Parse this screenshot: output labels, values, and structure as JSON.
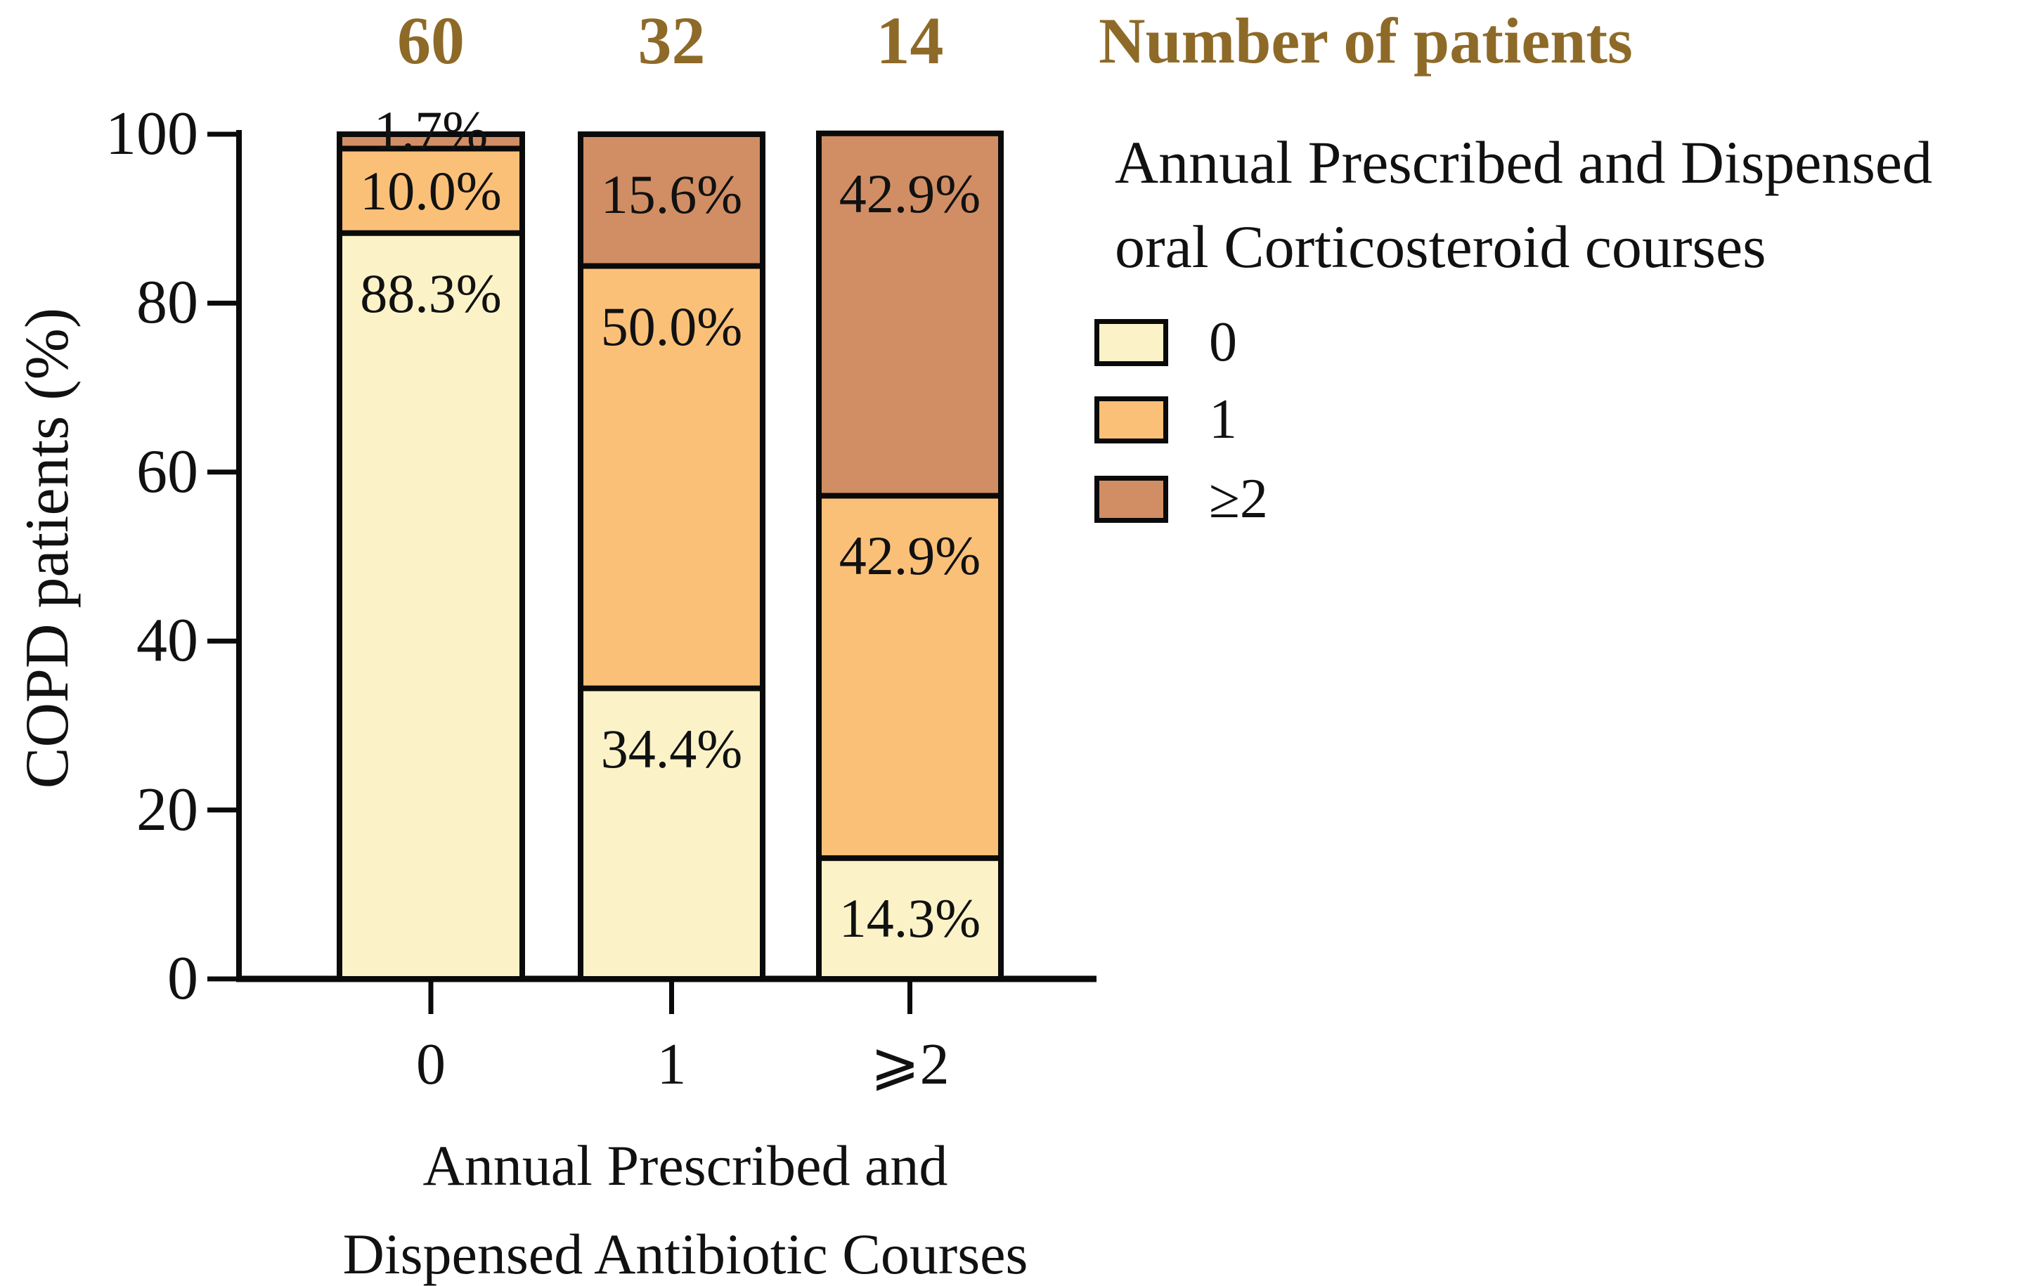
{
  "figure": {
    "counts_header": "Number of patients",
    "accent_color": "#8E6A28"
  },
  "chart_data": {
    "type": "stacked-bar",
    "unit": "percent",
    "title": "",
    "categories": [
      "0",
      "1",
      "⩾2"
    ],
    "patient_counts": [
      "60",
      "32",
      "14"
    ],
    "series": [
      {
        "name": "0",
        "color": "#FBF3C7",
        "values": [
          88.3,
          34.4,
          14.3
        ]
      },
      {
        "name": "1",
        "color": "#FBC078",
        "values": [
          10.0,
          50.0,
          42.9
        ]
      },
      {
        "name": "≥2",
        "color": "#D18E64",
        "values": [
          1.7,
          15.6,
          42.9
        ]
      }
    ],
    "segment_labels": [
      [
        "88.3%",
        "10.0%",
        "1.7%"
      ],
      [
        "34.4%",
        "50.0%",
        "15.6%"
      ],
      [
        "14.3%",
        "42.9%",
        "42.9%"
      ]
    ],
    "ylabel": "COPD patients (%)",
    "yticks": [
      "0",
      "20",
      "40",
      "60",
      "80",
      "100"
    ],
    "ylim": [
      0,
      100
    ],
    "grid": false,
    "xlabel_lines": [
      "Annual Prescribed and",
      "Dispensed Antibiotic Courses"
    ],
    "legend": {
      "position": "right",
      "title_lines": [
        "Annual Prescribed and Dispensed",
        "oral Corticosteroid courses"
      ],
      "entries": [
        {
          "label": "0",
          "color": "#FBF3C7"
        },
        {
          "label": "1",
          "color": "#FBC078"
        },
        {
          "label": "≥2",
          "color": "#D18E64"
        }
      ]
    }
  }
}
